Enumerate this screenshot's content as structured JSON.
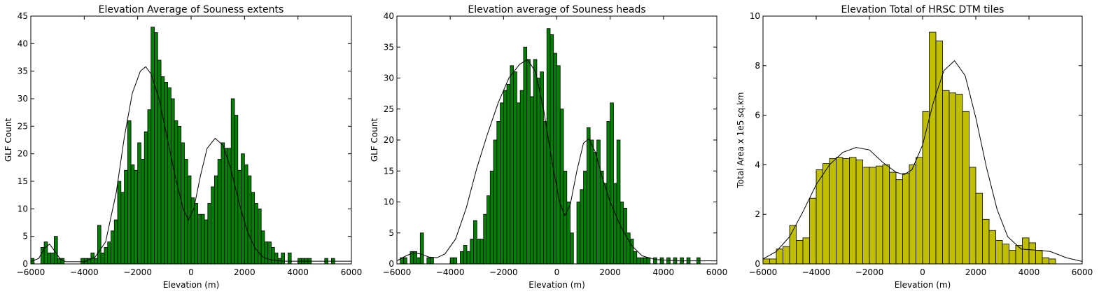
{
  "chart_data": [
    {
      "type": "bar",
      "title": "Elevation  Average of Souness extents",
      "xlabel": "Elevation (m)",
      "ylabel": "GLF Count",
      "xlim": [
        -6000,
        6000
      ],
      "ylim": [
        0,
        45
      ],
      "xticks": [
        -6000,
        -4000,
        -2000,
        0,
        2000,
        4000,
        6000
      ],
      "xtick_labels": [
        "−6000",
        "−4000",
        "−2000",
        "0",
        "2000",
        "4000",
        "6000"
      ],
      "yticks": [
        0,
        5,
        10,
        15,
        20,
        25,
        30,
        35,
        40,
        45
      ],
      "ytick_labels": [
        "0",
        "5",
        "10",
        "15",
        "20",
        "25",
        "30",
        "35",
        "40",
        "45"
      ],
      "bar_color": "#008000",
      "grid": false,
      "bin_start": -6000,
      "bin_width": 125,
      "values": [
        1,
        0,
        0,
        3,
        4,
        2,
        2,
        5,
        1,
        1,
        0,
        0,
        0,
        0,
        0,
        1,
        1,
        1,
        2,
        1,
        7,
        2,
        3,
        4,
        6,
        8,
        15,
        13,
        17,
        26,
        18,
        17,
        22,
        19,
        24,
        28,
        43,
        42,
        37,
        34,
        33,
        32,
        30,
        26,
        25,
        22,
        19,
        16,
        12,
        11,
        9,
        9,
        8,
        11,
        14,
        16,
        19,
        22,
        21,
        21,
        30,
        27,
        17,
        20,
        18,
        16,
        13,
        11,
        10,
        6,
        4,
        4,
        3,
        2,
        1,
        2,
        0,
        2,
        0,
        0,
        1,
        1,
        1,
        1,
        0,
        0,
        0,
        0,
        1,
        0,
        1
      ],
      "curve": [
        {
          "x": -6000,
          "y": 0.4
        },
        {
          "x": -5700,
          "y": 1.0
        },
        {
          "x": -5500,
          "y": 2.8
        },
        {
          "x": -5300,
          "y": 3.6
        },
        {
          "x": -5100,
          "y": 2.3
        },
        {
          "x": -4900,
          "y": 0.9
        },
        {
          "x": -4700,
          "y": 0.4
        },
        {
          "x": -4000,
          "y": 0.4
        },
        {
          "x": -3600,
          "y": 1.2
        },
        {
          "x": -3200,
          "y": 4.0
        },
        {
          "x": -2800,
          "y": 13.0
        },
        {
          "x": -2500,
          "y": 23.0
        },
        {
          "x": -2200,
          "y": 31.0
        },
        {
          "x": -1900,
          "y": 35.0
        },
        {
          "x": -1700,
          "y": 35.8
        },
        {
          "x": -1500,
          "y": 34.5
        },
        {
          "x": -1200,
          "y": 30.0
        },
        {
          "x": -900,
          "y": 23.0
        },
        {
          "x": -600,
          "y": 16.0
        },
        {
          "x": -300,
          "y": 10.0
        },
        {
          "x": -100,
          "y": 8.0
        },
        {
          "x": 100,
          "y": 10.0
        },
        {
          "x": 350,
          "y": 16.0
        },
        {
          "x": 600,
          "y": 21.0
        },
        {
          "x": 900,
          "y": 22.8
        },
        {
          "x": 1200,
          "y": 21.5
        },
        {
          "x": 1500,
          "y": 17.0
        },
        {
          "x": 1800,
          "y": 11.0
        },
        {
          "x": 2100,
          "y": 6.0
        },
        {
          "x": 2400,
          "y": 2.8
        },
        {
          "x": 2700,
          "y": 1.2
        },
        {
          "x": 3000,
          "y": 0.7
        },
        {
          "x": 3500,
          "y": 0.5
        },
        {
          "x": 6000,
          "y": 0.5
        }
      ]
    },
    {
      "type": "bar",
      "title": "Elevation average of Souness heads",
      "xlabel": "Elevation (m)",
      "ylabel": "GLF Count",
      "xlim": [
        -6000,
        6000
      ],
      "ylim": [
        0,
        40
      ],
      "xticks": [
        -6000,
        -4000,
        -2000,
        0,
        2000,
        4000,
        6000
      ],
      "xtick_labels": [
        "−6000",
        "−4000",
        "−2000",
        "0",
        "2000",
        "4000",
        "6000"
      ],
      "yticks": [
        0,
        5,
        10,
        15,
        20,
        25,
        30,
        35,
        40
      ],
      "ytick_labels": [
        "0",
        "5",
        "10",
        "15",
        "20",
        "25",
        "30",
        "35",
        "40"
      ],
      "bar_color": "#008000",
      "grid": false,
      "bin_start": -6000,
      "bin_width": 125,
      "values": [
        0,
        1,
        1,
        0,
        2,
        2,
        1,
        5,
        0,
        1,
        1,
        0,
        0,
        0,
        0,
        0,
        1,
        1,
        0,
        2,
        3,
        2,
        4,
        7,
        4,
        4,
        8,
        11,
        15,
        20,
        23,
        26,
        28,
        29,
        32,
        31,
        26,
        28,
        35,
        33,
        27,
        33,
        30,
        31,
        23,
        38,
        37,
        34,
        32,
        25,
        15,
        10,
        5,
        0,
        10,
        12,
        15,
        22,
        20,
        18,
        20,
        15,
        13,
        23,
        26,
        13,
        20,
        10,
        9,
        5,
        4,
        2,
        1,
        1,
        1,
        1,
        0,
        1,
        0,
        1,
        0,
        1,
        0,
        1,
        0,
        1,
        0,
        1,
        0,
        0,
        1
      ],
      "curve": [
        {
          "x": -6000,
          "y": 0.5
        },
        {
          "x": -5700,
          "y": 1.2
        },
        {
          "x": -5400,
          "y": 1.8
        },
        {
          "x": -5100,
          "y": 1.6
        },
        {
          "x": -4800,
          "y": 1.1
        },
        {
          "x": -4500,
          "y": 1.0
        },
        {
          "x": -4200,
          "y": 1.6
        },
        {
          "x": -3800,
          "y": 4.0
        },
        {
          "x": -3400,
          "y": 9.0
        },
        {
          "x": -3000,
          "y": 15.5
        },
        {
          "x": -2600,
          "y": 21.0
        },
        {
          "x": -2200,
          "y": 26.0
        },
        {
          "x": -1800,
          "y": 30.0
        },
        {
          "x": -1400,
          "y": 32.2
        },
        {
          "x": -1100,
          "y": 33.0
        },
        {
          "x": -800,
          "y": 31.0
        },
        {
          "x": -500,
          "y": 25.0
        },
        {
          "x": -200,
          "y": 17.0
        },
        {
          "x": 100,
          "y": 10.0
        },
        {
          "x": 300,
          "y": 7.8
        },
        {
          "x": 500,
          "y": 9.5
        },
        {
          "x": 750,
          "y": 15.0
        },
        {
          "x": 1000,
          "y": 19.5
        },
        {
          "x": 1200,
          "y": 20.2
        },
        {
          "x": 1450,
          "y": 18.0
        },
        {
          "x": 1700,
          "y": 14.0
        },
        {
          "x": 2000,
          "y": 10.0
        },
        {
          "x": 2400,
          "y": 6.0
        },
        {
          "x": 2800,
          "y": 3.0
        },
        {
          "x": 3200,
          "y": 1.3
        },
        {
          "x": 3700,
          "y": 0.7
        },
        {
          "x": 4500,
          "y": 0.5
        },
        {
          "x": 6000,
          "y": 0.5
        }
      ]
    },
    {
      "type": "bar",
      "title": "Elevation  Total of HRSC DTM tiles",
      "xlabel": "Elevation (m)",
      "ylabel": "Total Area x 1e5 sq.km",
      "xlim": [
        -6000,
        6000
      ],
      "ylim": [
        0,
        10
      ],
      "xticks": [
        -6000,
        -4000,
        -2000,
        0,
        2000,
        4000,
        6000
      ],
      "xtick_labels": [
        "−6000",
        "−4000",
        "−2000",
        "0",
        "2000",
        "4000",
        "6000"
      ],
      "yticks": [
        0,
        2,
        4,
        6,
        8,
        10
      ],
      "ytick_labels": [
        "0",
        "2",
        "4",
        "6",
        "8",
        "10"
      ],
      "bar_color": "#bfbf00",
      "grid": false,
      "bin_start": -6000,
      "bin_width": 250,
      "values": [
        0.2,
        0.2,
        0.6,
        0.7,
        1.55,
        0.95,
        1.05,
        2.65,
        3.8,
        4.05,
        4.25,
        4.3,
        4.25,
        4.3,
        4.2,
        3.9,
        3.9,
        3.95,
        4.0,
        3.7,
        3.4,
        3.65,
        4.0,
        4.3,
        6.15,
        9.35,
        9.0,
        7.0,
        6.9,
        6.85,
        6.15,
        3.9,
        2.85,
        1.8,
        1.35,
        0.95,
        0.8,
        0.55,
        0.75,
        1.05,
        0.85,
        0.55,
        0.25,
        0.2
      ],
      "curve": [
        {
          "x": -6000,
          "y": 0.2
        },
        {
          "x": -5500,
          "y": 0.5
        },
        {
          "x": -5000,
          "y": 1.1
        },
        {
          "x": -4500,
          "y": 2.1
        },
        {
          "x": -4000,
          "y": 3.2
        },
        {
          "x": -3500,
          "y": 4.0
        },
        {
          "x": -3000,
          "y": 4.5
        },
        {
          "x": -2500,
          "y": 4.7
        },
        {
          "x": -2000,
          "y": 4.6
        },
        {
          "x": -1500,
          "y": 4.1
        },
        {
          "x": -1000,
          "y": 3.7
        },
        {
          "x": -700,
          "y": 3.6
        },
        {
          "x": -400,
          "y": 3.8
        },
        {
          "x": 0,
          "y": 4.8
        },
        {
          "x": 400,
          "y": 6.5
        },
        {
          "x": 800,
          "y": 7.8
        },
        {
          "x": 1200,
          "y": 8.2
        },
        {
          "x": 1600,
          "y": 7.6
        },
        {
          "x": 2000,
          "y": 5.9
        },
        {
          "x": 2400,
          "y": 3.9
        },
        {
          "x": 2800,
          "y": 2.2
        },
        {
          "x": 3200,
          "y": 1.1
        },
        {
          "x": 3700,
          "y": 0.6
        },
        {
          "x": 4300,
          "y": 0.55
        },
        {
          "x": 4800,
          "y": 0.5
        },
        {
          "x": 5400,
          "y": 0.25
        },
        {
          "x": 6000,
          "y": 0.1
        }
      ]
    }
  ]
}
